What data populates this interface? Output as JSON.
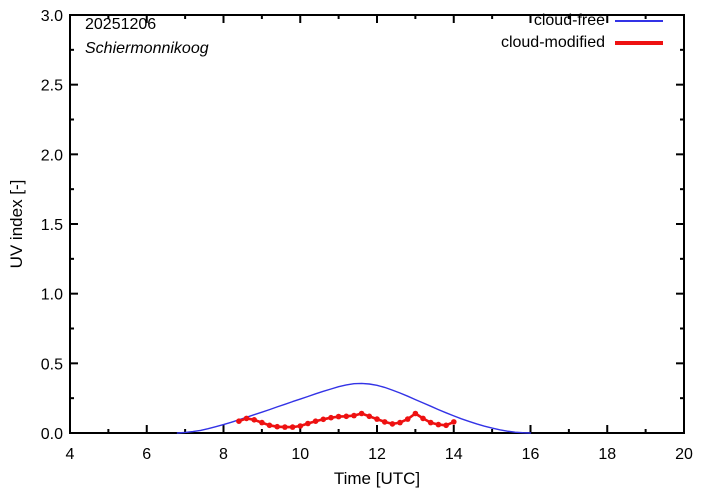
{
  "chart_data": {
    "type": "line",
    "annotations": {
      "date": "20251206",
      "station": "Schiermonnikoog"
    },
    "xlabel": "Time  [UTC]",
    "ylabel": "UV index  [-]",
    "xlim": [
      4,
      20
    ],
    "ylim": [
      0.0,
      3.0
    ],
    "grid": "off",
    "x_major_ticks": [
      4,
      6,
      8,
      10,
      12,
      14,
      16,
      18,
      20
    ],
    "x_tick_labels": [
      "4",
      "6",
      "8",
      "10",
      "12",
      "14",
      "16",
      "18",
      "20"
    ],
    "x_minor_ticks": [
      5,
      7,
      9,
      11,
      13,
      15,
      17,
      19
    ],
    "y_major_ticks": [
      0.0,
      0.5,
      1.0,
      1.5,
      2.0,
      2.5,
      3.0
    ],
    "y_tick_labels": [
      "0.0",
      "0.5",
      "1.0",
      "1.5",
      "2.0",
      "2.5",
      "3.0"
    ],
    "y_minor_ticks": [
      0.25,
      0.75,
      1.25,
      1.75,
      2.25,
      2.75
    ],
    "colors": {
      "axis": "#000000",
      "cloud_free": "#3333e6",
      "cloud_modified": "#ee1111"
    },
    "legend": {
      "position": "top-right",
      "entries": [
        {
          "label": "cloud-free",
          "color": "#3333e6",
          "line_width": 2,
          "markers": false
        },
        {
          "label": "cloud-modified",
          "color": "#ee1111",
          "line_width": 4,
          "markers": true
        }
      ]
    },
    "series": [
      {
        "name": "cloud-free",
        "color": "#3333e6",
        "line_width": 1.4,
        "markers": false,
        "points": [
          [
            6.8,
            0.0
          ],
          [
            7.0,
            0.004
          ],
          [
            7.2,
            0.01
          ],
          [
            7.4,
            0.019
          ],
          [
            7.6,
            0.031
          ],
          [
            7.8,
            0.045
          ],
          [
            8.0,
            0.06
          ],
          [
            8.2,
            0.077
          ],
          [
            8.4,
            0.095
          ],
          [
            8.6,
            0.113
          ],
          [
            8.8,
            0.131
          ],
          [
            9.0,
            0.149
          ],
          [
            9.2,
            0.168
          ],
          [
            9.4,
            0.187
          ],
          [
            9.6,
            0.206
          ],
          [
            9.8,
            0.225
          ],
          [
            10.0,
            0.243
          ],
          [
            10.2,
            0.262
          ],
          [
            10.4,
            0.281
          ],
          [
            10.6,
            0.299
          ],
          [
            10.8,
            0.316
          ],
          [
            11.0,
            0.332
          ],
          [
            11.2,
            0.345
          ],
          [
            11.4,
            0.354
          ],
          [
            11.6,
            0.356
          ],
          [
            11.8,
            0.352
          ],
          [
            12.0,
            0.342
          ],
          [
            12.2,
            0.327
          ],
          [
            12.4,
            0.308
          ],
          [
            12.6,
            0.287
          ],
          [
            12.8,
            0.264
          ],
          [
            13.0,
            0.24
          ],
          [
            13.2,
            0.216
          ],
          [
            13.4,
            0.192
          ],
          [
            13.6,
            0.168
          ],
          [
            13.8,
            0.145
          ],
          [
            14.0,
            0.123
          ],
          [
            14.2,
            0.102
          ],
          [
            14.4,
            0.083
          ],
          [
            14.6,
            0.065
          ],
          [
            14.8,
            0.049
          ],
          [
            15.0,
            0.035
          ],
          [
            15.2,
            0.023
          ],
          [
            15.4,
            0.013
          ],
          [
            15.6,
            0.006
          ],
          [
            15.8,
            0.002
          ],
          [
            16.0,
            0.0
          ]
        ]
      },
      {
        "name": "cloud-modified",
        "color": "#ee1111",
        "line_width": 2.6,
        "markers": true,
        "marker_radius": 2.8,
        "points": [
          [
            8.4,
            0.085
          ],
          [
            8.6,
            0.105
          ],
          [
            8.8,
            0.095
          ],
          [
            9.0,
            0.075
          ],
          [
            9.2,
            0.055
          ],
          [
            9.4,
            0.045
          ],
          [
            9.6,
            0.042
          ],
          [
            9.8,
            0.042
          ],
          [
            10.0,
            0.05
          ],
          [
            10.2,
            0.068
          ],
          [
            10.4,
            0.085
          ],
          [
            10.6,
            0.098
          ],
          [
            10.8,
            0.11
          ],
          [
            11.0,
            0.118
          ],
          [
            11.2,
            0.12
          ],
          [
            11.4,
            0.125
          ],
          [
            11.6,
            0.14
          ],
          [
            11.8,
            0.12
          ],
          [
            12.0,
            0.1
          ],
          [
            12.2,
            0.08
          ],
          [
            12.4,
            0.065
          ],
          [
            12.6,
            0.075
          ],
          [
            12.8,
            0.1
          ],
          [
            13.0,
            0.14
          ],
          [
            13.2,
            0.105
          ],
          [
            13.4,
            0.075
          ],
          [
            13.6,
            0.06
          ],
          [
            13.8,
            0.055
          ],
          [
            14.0,
            0.08
          ]
        ]
      }
    ]
  }
}
